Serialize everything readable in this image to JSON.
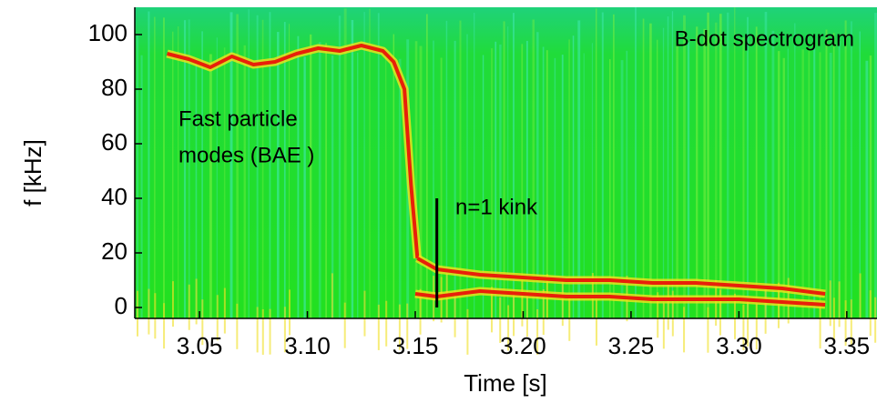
{
  "chart_data": {
    "type": "spectrogram",
    "x_label": "Time [s]",
    "y_label": "f [kHz]",
    "xlim": [
      3.02,
      3.364
    ],
    "ylim": [
      -4,
      110
    ],
    "xticks": [
      3.05,
      {
        "value": 3.1,
        "label": "3.10"
      },
      3.15,
      {
        "value": 3.2,
        "label": "3.20"
      },
      3.25,
      {
        "value": 3.3,
        "label": "3.30"
      },
      3.35
    ],
    "yticks": [
      0,
      20,
      40,
      60,
      80,
      100
    ],
    "annotations": [
      "B-dot spectrogram",
      "Fast particle",
      "modes (BAE   )",
      "n=1 kink"
    ],
    "kink_marker": {
      "x": 3.16,
      "y": [
        0,
        40
      ],
      "color": "#000000"
    },
    "series": [
      {
        "color": "#e8200a",
        "x": [
          3.035,
          3.045,
          3.055,
          3.065,
          3.075,
          3.085,
          3.095,
          3.105,
          3.115,
          3.125,
          3.135,
          3.14,
          3.145,
          3.148,
          3.151
        ],
        "values": [
          93,
          91,
          88,
          92,
          89,
          90,
          93,
          95,
          94,
          96,
          94,
          90,
          80,
          45,
          18
        ]
      },
      {
        "color": "#e8200a",
        "x": [
          3.151,
          3.16,
          3.18,
          3.2,
          3.22,
          3.24,
          3.26,
          3.28,
          3.3,
          3.32,
          3.34
        ],
        "values": [
          18,
          14,
          12,
          11,
          10,
          10,
          9,
          9,
          8,
          7,
          5
        ]
      },
      {
        "color": "#e8200a",
        "x": [
          3.15,
          3.16,
          3.18,
          3.2,
          3.22,
          3.24,
          3.26,
          3.28,
          3.3,
          3.32,
          3.34
        ],
        "values": [
          5,
          4,
          6,
          5,
          4,
          4,
          3,
          3,
          3,
          2,
          1
        ]
      }
    ]
  }
}
